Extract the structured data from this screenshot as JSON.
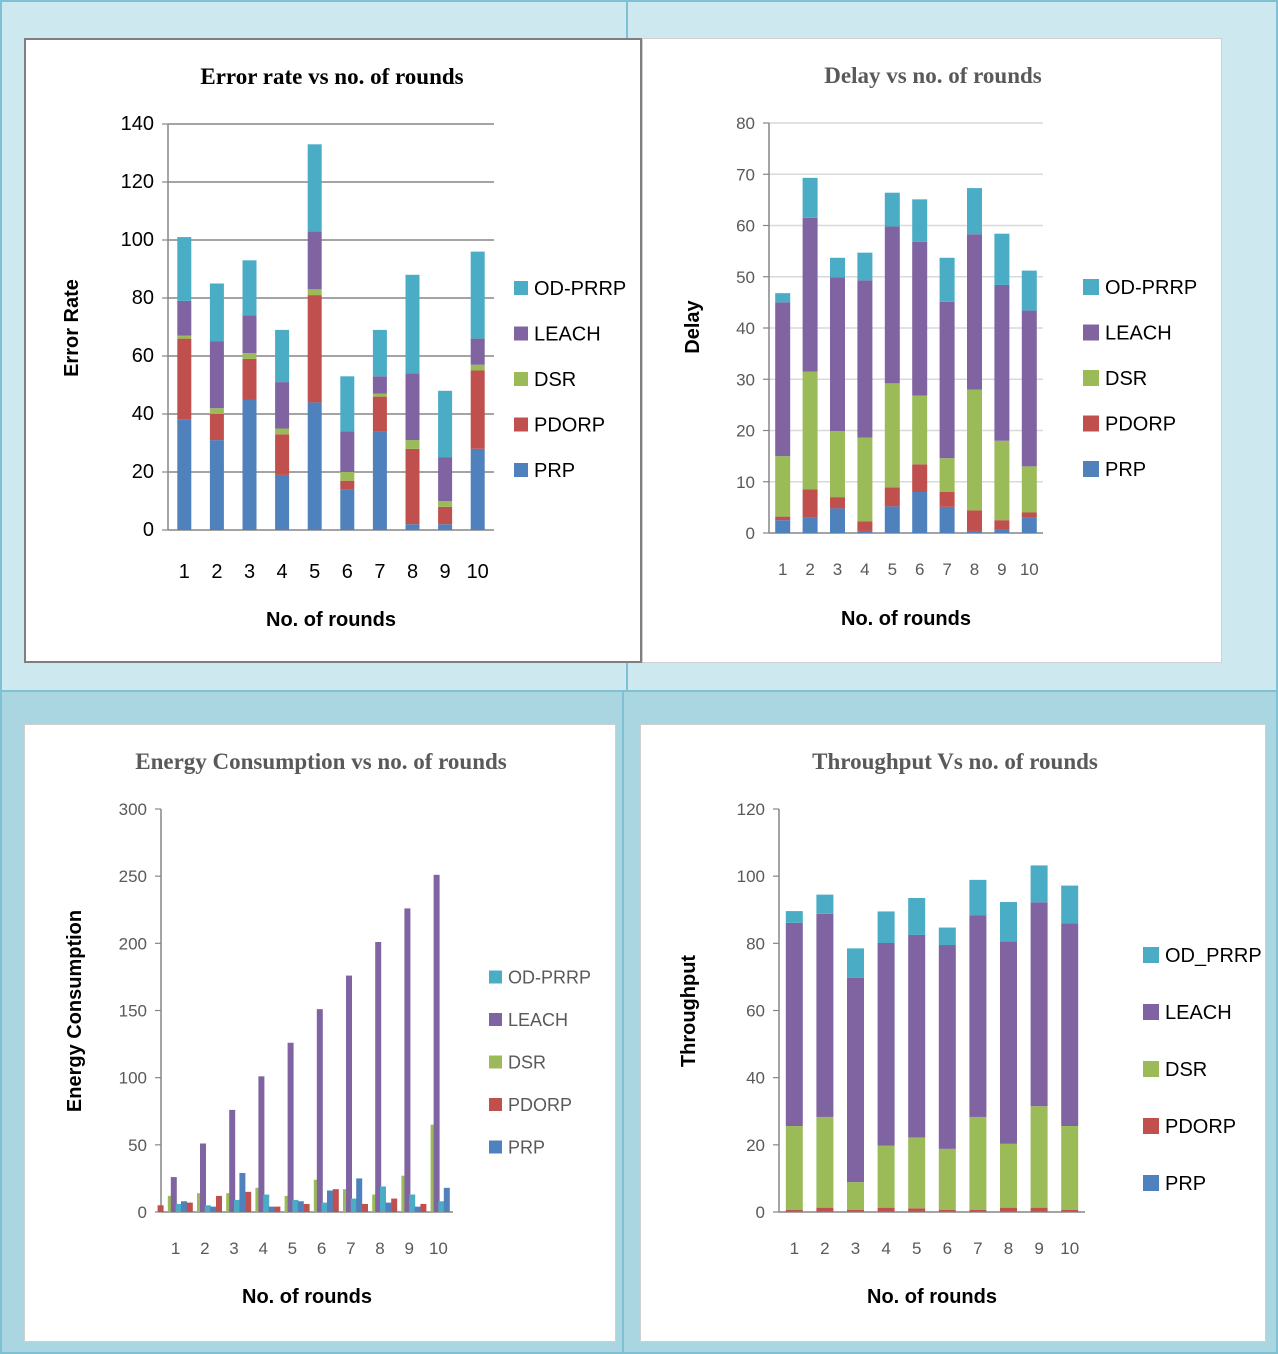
{
  "colors": {
    "PRP": "#4f81bd",
    "PDORP": "#c0504d",
    "DSR": "#9bbb59",
    "LEACH": "#8064a2",
    "OD": "#4bacc6",
    "axis": "#868686",
    "grid": "#868686"
  },
  "chart_data": [
    {
      "id": "c1",
      "type": "bar",
      "stacked": true,
      "title": "Error rate vs no. of rounds",
      "xlabel": "No. of rounds",
      "ylabel": "Error Rate",
      "ylim": [
        0,
        140
      ],
      "yticks": [
        0,
        20,
        40,
        60,
        80,
        100,
        120,
        140
      ],
      "grid": true,
      "categories": [
        "1",
        "2",
        "3",
        "4",
        "5",
        "6",
        "7",
        "8",
        "9",
        "10"
      ],
      "series": [
        {
          "name": "PRP",
          "values": [
            38,
            31,
            45,
            19,
            44,
            14,
            34,
            2,
            2,
            28
          ]
        },
        {
          "name": "PDORP",
          "values": [
            28,
            9,
            14,
            14,
            37,
            3,
            12,
            26,
            6,
            27
          ]
        },
        {
          "name": "DSR",
          "values": [
            1,
            2,
            2,
            2,
            2,
            3,
            1,
            3,
            2,
            2
          ]
        },
        {
          "name": "LEACH",
          "values": [
            12,
            23,
            13,
            16,
            20,
            14,
            6,
            23,
            15,
            9
          ]
        },
        {
          "name": "OD-PRRP",
          "values": [
            22,
            20,
            19,
            18,
            30,
            19,
            16,
            34,
            23,
            30
          ]
        }
      ],
      "legend_labels": [
        "OD-PRRP",
        "LEACH",
        "DSR",
        "PDORP",
        "PRP"
      ]
    },
    {
      "id": "c2",
      "type": "bar",
      "stacked": true,
      "title": "Delay vs no. of rounds",
      "xlabel": "No. of rounds",
      "ylabel": "Delay",
      "ylim": [
        0,
        80
      ],
      "yticks": [
        0,
        10,
        20,
        30,
        40,
        50,
        60,
        70,
        80
      ],
      "grid": true,
      "categories": [
        "1",
        "2",
        "3",
        "4",
        "5",
        "6",
        "7",
        "8",
        "9",
        "10"
      ],
      "series": [
        {
          "name": "PRP",
          "values": [
            2.5,
            3,
            4.8,
            0.4,
            5.2,
            8,
            5.1,
            0.4,
            0.6,
            3
          ]
        },
        {
          "name": "PDORP",
          "values": [
            0.7,
            5.5,
            2.2,
            1.9,
            3.7,
            5.4,
            2.9,
            4,
            1.9,
            1
          ]
        },
        {
          "name": "DSR",
          "values": [
            11.8,
            23,
            12.9,
            16.3,
            20.3,
            13.4,
            6.6,
            23.6,
            15.5,
            9
          ]
        },
        {
          "name": "LEACH",
          "values": [
            30,
            30,
            30,
            30.7,
            30.6,
            30,
            30.5,
            30.3,
            30.4,
            30.4
          ]
        },
        {
          "name": "OD-PRRP",
          "values": [
            1.8,
            7.8,
            3.8,
            5.4,
            6.6,
            8.3,
            8.6,
            9,
            10,
            7.8
          ]
        }
      ],
      "legend_labels": [
        "OD-PRRP",
        "LEACH",
        "DSR",
        "PDORP",
        "PRP"
      ]
    },
    {
      "id": "c3",
      "type": "bar",
      "stacked": false,
      "title": "Energy Consumption vs no. of rounds",
      "xlabel": "No. of rounds",
      "ylabel": "Energy Consumption",
      "ylim": [
        0,
        300
      ],
      "yticks": [
        0,
        50,
        100,
        150,
        200,
        250,
        300
      ],
      "grid": false,
      "categories": [
        "1",
        "2",
        "3",
        "4",
        "5",
        "6",
        "7",
        "8",
        "9",
        "10"
      ],
      "series": [
        {
          "name": "LEACH",
          "values": [
            26,
            51,
            76,
            101,
            126,
            151,
            176,
            201,
            226,
            251
          ]
        },
        {
          "name": "DSR",
          "values": [
            12,
            14,
            14,
            18,
            12,
            24,
            17,
            13,
            27,
            65
          ]
        },
        {
          "name": "PDORP",
          "values": [
            5,
            7,
            12,
            15,
            4,
            6,
            17,
            6,
            10,
            6
          ]
        },
        {
          "name": "PRP",
          "values": [
            8,
            4,
            29,
            4,
            8,
            16,
            25,
            7,
            4,
            18
          ]
        },
        {
          "name": "OD-PRRP",
          "values": [
            6,
            5,
            9,
            13,
            9,
            7,
            10,
            19,
            13,
            8
          ]
        }
      ],
      "legend_labels": [
        "OD-PRRP",
        "LEACH",
        "DSR",
        "PDORP",
        "PRP"
      ]
    },
    {
      "id": "c4",
      "type": "bar",
      "stacked": true,
      "title": "Throughput Vs no. of rounds",
      "xlabel": "No. of rounds",
      "ylabel": "Throughput",
      "ylim": [
        0,
        120
      ],
      "yticks": [
        0,
        20,
        40,
        60,
        80,
        100,
        120
      ],
      "grid": false,
      "categories": [
        "1",
        "2",
        "3",
        "4",
        "5",
        "6",
        "7",
        "8",
        "9",
        "10"
      ],
      "series": [
        {
          "name": "PRP",
          "values": [
            0.3,
            0.3,
            0.3,
            0.3,
            0.3,
            0.3,
            0.3,
            0.3,
            0.3,
            0.3
          ]
        },
        {
          "name": "PDORP",
          "values": [
            0.3,
            1,
            0.3,
            1,
            0.8,
            0.3,
            0.3,
            1,
            1,
            0.3
          ]
        },
        {
          "name": "DSR",
          "values": [
            25,
            27,
            8.3,
            18.5,
            21.1,
            18.2,
            27.7,
            19,
            30.2,
            25
          ]
        },
        {
          "name": "LEACH",
          "values": [
            60.5,
            60.5,
            60.8,
            60.3,
            60.3,
            60.7,
            60.1,
            60.3,
            60.7,
            60.4
          ]
        },
        {
          "name": "OD_PRRP",
          "values": [
            3.5,
            5.7,
            8.8,
            9.4,
            11,
            5.2,
            10.5,
            11.7,
            11,
            11.2
          ]
        }
      ],
      "legend_labels": [
        "OD_PRRP",
        "LEACH",
        "DSR",
        "PDORP",
        "PRP"
      ]
    }
  ]
}
